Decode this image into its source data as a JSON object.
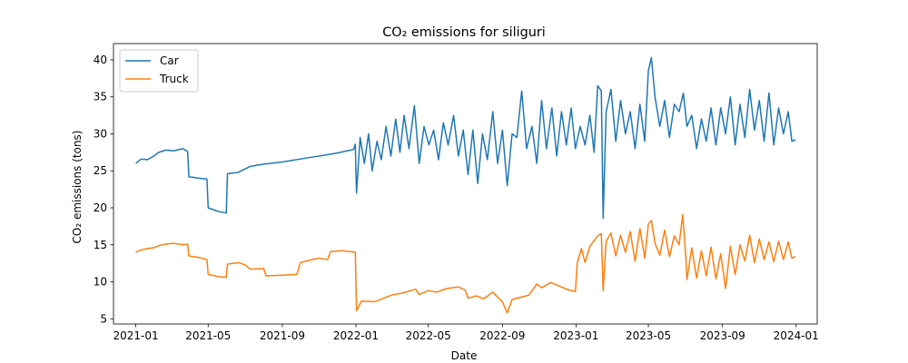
{
  "chart_data": {
    "type": "line",
    "title": "CO₂ emissions for siliguri",
    "xlabel": "Date",
    "ylabel": "CO₂ emissions (tons)",
    "xlim": [
      "2020-11-25",
      "2024-02-05"
    ],
    "ylim": [
      4.3,
      42.2
    ],
    "x_ticks": [
      "2021-01",
      "2021-05",
      "2021-09",
      "2022-01",
      "2022-05",
      "2022-09",
      "2023-01",
      "2023-05",
      "2023-09",
      "2024-01"
    ],
    "y_ticks": [
      5,
      10,
      15,
      20,
      25,
      30,
      35,
      40
    ],
    "grid": false,
    "legend": "top-left",
    "series": [
      {
        "name": "Car",
        "color": "#1f77b4",
        "points": [
          [
            "2021-01-01",
            26.0
          ],
          [
            "2021-01-10",
            26.6
          ],
          [
            "2021-01-20",
            26.5
          ],
          [
            "2021-01-31",
            27.0
          ],
          [
            "2021-02-08",
            27.5
          ],
          [
            "2021-02-20",
            27.8
          ],
          [
            "2021-03-05",
            27.7
          ],
          [
            "2021-03-20",
            28.0
          ],
          [
            "2021-03-28",
            27.6
          ],
          [
            "2021-03-30",
            24.2
          ],
          [
            "2021-04-15",
            24.0
          ],
          [
            "2021-04-29",
            23.9
          ],
          [
            "2021-05-01",
            20.0
          ],
          [
            "2021-05-18",
            19.5
          ],
          [
            "2021-05-31",
            19.3
          ],
          [
            "2021-06-02",
            24.6
          ],
          [
            "2021-06-20",
            24.8
          ],
          [
            "2021-07-10",
            25.6
          ],
          [
            "2021-08-01",
            25.9
          ],
          [
            "2021-09-01",
            26.2
          ],
          [
            "2021-10-01",
            26.6
          ],
          [
            "2021-11-01",
            27.0
          ],
          [
            "2021-12-01",
            27.4
          ],
          [
            "2021-12-28",
            27.9
          ],
          [
            "2021-12-31",
            28.6
          ],
          [
            "2022-01-02",
            22.0
          ],
          [
            "2022-01-08",
            29.5
          ],
          [
            "2022-01-15",
            26.0
          ],
          [
            "2022-01-22",
            30.0
          ],
          [
            "2022-01-28",
            25.0
          ],
          [
            "2022-02-05",
            29.0
          ],
          [
            "2022-02-12",
            26.5
          ],
          [
            "2022-02-20",
            31.0
          ],
          [
            "2022-02-28",
            27.0
          ],
          [
            "2022-03-08",
            32.0
          ],
          [
            "2022-03-15",
            27.5
          ],
          [
            "2022-03-22",
            32.5
          ],
          [
            "2022-03-30",
            28.0
          ],
          [
            "2022-04-08",
            33.8
          ],
          [
            "2022-04-16",
            26.0
          ],
          [
            "2022-04-24",
            31.0
          ],
          [
            "2022-05-02",
            28.5
          ],
          [
            "2022-05-10",
            30.5
          ],
          [
            "2022-05-18",
            26.5
          ],
          [
            "2022-05-26",
            31.5
          ],
          [
            "2022-06-03",
            28.5
          ],
          [
            "2022-06-12",
            32.5
          ],
          [
            "2022-06-20",
            27.0
          ],
          [
            "2022-06-28",
            30.5
          ],
          [
            "2022-07-06",
            24.5
          ],
          [
            "2022-07-14",
            30.5
          ],
          [
            "2022-07-22",
            23.3
          ],
          [
            "2022-07-30",
            30.0
          ],
          [
            "2022-08-07",
            26.5
          ],
          [
            "2022-08-16",
            33.0
          ],
          [
            "2022-08-24",
            26.0
          ],
          [
            "2022-09-01",
            30.5
          ],
          [
            "2022-09-09",
            23.0
          ],
          [
            "2022-09-17",
            30.0
          ],
          [
            "2022-09-25",
            29.5
          ],
          [
            "2022-10-03",
            35.8
          ],
          [
            "2022-10-11",
            28.0
          ],
          [
            "2022-10-20",
            31.0
          ],
          [
            "2022-10-28",
            26.0
          ],
          [
            "2022-11-05",
            34.5
          ],
          [
            "2022-11-13",
            28.0
          ],
          [
            "2022-11-22",
            33.5
          ],
          [
            "2022-11-30",
            27.0
          ],
          [
            "2022-12-08",
            33.0
          ],
          [
            "2022-12-16",
            28.5
          ],
          [
            "2022-12-24",
            33.5
          ],
          [
            "2022-12-31",
            28.0
          ],
          [
            "2023-01-08",
            31.0
          ],
          [
            "2023-01-16",
            28.5
          ],
          [
            "2023-01-24",
            32.5
          ],
          [
            "2023-01-31",
            27.5
          ],
          [
            "2023-02-06",
            36.5
          ],
          [
            "2023-02-12",
            35.8
          ],
          [
            "2023-02-15",
            18.6
          ],
          [
            "2023-02-20",
            33.0
          ],
          [
            "2023-02-28",
            36.0
          ],
          [
            "2023-03-08",
            29.0
          ],
          [
            "2023-03-16",
            34.5
          ],
          [
            "2023-03-24",
            30.0
          ],
          [
            "2023-04-01",
            33.0
          ],
          [
            "2023-04-09",
            28.0
          ],
          [
            "2023-04-17",
            34.0
          ],
          [
            "2023-04-25",
            29.0
          ],
          [
            "2023-05-01",
            38.5
          ],
          [
            "2023-05-06",
            40.3
          ],
          [
            "2023-05-12",
            35.0
          ],
          [
            "2023-05-20",
            31.0
          ],
          [
            "2023-05-28",
            34.5
          ],
          [
            "2023-06-05",
            29.5
          ],
          [
            "2023-06-13",
            34.0
          ],
          [
            "2023-06-21",
            33.0
          ],
          [
            "2023-06-28",
            35.5
          ],
          [
            "2023-07-04",
            31.0
          ],
          [
            "2023-07-12",
            32.5
          ],
          [
            "2023-07-20",
            28.0
          ],
          [
            "2023-07-28",
            32.0
          ],
          [
            "2023-08-05",
            29.0
          ],
          [
            "2023-08-13",
            33.5
          ],
          [
            "2023-08-21",
            28.5
          ],
          [
            "2023-08-29",
            33.5
          ],
          [
            "2023-09-06",
            30.0
          ],
          [
            "2023-09-14",
            35.0
          ],
          [
            "2023-09-22",
            28.5
          ],
          [
            "2023-09-30",
            34.0
          ],
          [
            "2023-10-08",
            29.5
          ],
          [
            "2023-10-16",
            36.0
          ],
          [
            "2023-10-24",
            30.5
          ],
          [
            "2023-11-01",
            34.5
          ],
          [
            "2023-11-09",
            29.0
          ],
          [
            "2023-11-17",
            35.5
          ],
          [
            "2023-11-25",
            28.5
          ],
          [
            "2023-12-03",
            33.5
          ],
          [
            "2023-12-11",
            30.0
          ],
          [
            "2023-12-19",
            33.0
          ],
          [
            "2023-12-25",
            29.0
          ],
          [
            "2023-12-31",
            29.2
          ]
        ]
      },
      {
        "name": "Truck",
        "color": "#ff7f0e",
        "points": [
          [
            "2021-01-01",
            14.0
          ],
          [
            "2021-01-10",
            14.3
          ],
          [
            "2021-01-20",
            14.5
          ],
          [
            "2021-01-31",
            14.6
          ],
          [
            "2021-02-08",
            14.9
          ],
          [
            "2021-02-20",
            15.1
          ],
          [
            "2021-03-05",
            15.2
          ],
          [
            "2021-03-20",
            15.0
          ],
          [
            "2021-03-28",
            15.1
          ],
          [
            "2021-03-30",
            13.5
          ],
          [
            "2021-04-15",
            13.3
          ],
          [
            "2021-04-29",
            13.0
          ],
          [
            "2021-05-01",
            11.0
          ],
          [
            "2021-05-18",
            10.7
          ],
          [
            "2021-05-31",
            10.6
          ],
          [
            "2021-06-02",
            12.4
          ],
          [
            "2021-06-20",
            12.6
          ],
          [
            "2021-07-01",
            12.3
          ],
          [
            "2021-07-10",
            11.7
          ],
          [
            "2021-08-01",
            11.8
          ],
          [
            "2021-08-05",
            10.8
          ],
          [
            "2021-09-01",
            10.9
          ],
          [
            "2021-09-25",
            11.0
          ],
          [
            "2021-10-01",
            12.6
          ],
          [
            "2021-10-15",
            12.9
          ],
          [
            "2021-11-01",
            13.2
          ],
          [
            "2021-11-15",
            13.0
          ],
          [
            "2021-11-20",
            14.1
          ],
          [
            "2021-12-10",
            14.2
          ],
          [
            "2021-12-31",
            14.0
          ],
          [
            "2022-01-02",
            6.1
          ],
          [
            "2022-01-10",
            7.4
          ],
          [
            "2022-02-01",
            7.3
          ],
          [
            "2022-03-01",
            8.2
          ],
          [
            "2022-03-20",
            8.5
          ],
          [
            "2022-04-10",
            9.0
          ],
          [
            "2022-04-16",
            8.3
          ],
          [
            "2022-05-01",
            8.8
          ],
          [
            "2022-05-15",
            8.6
          ],
          [
            "2022-06-01",
            9.1
          ],
          [
            "2022-06-20",
            9.3
          ],
          [
            "2022-07-01",
            8.9
          ],
          [
            "2022-07-06",
            7.8
          ],
          [
            "2022-07-20",
            8.1
          ],
          [
            "2022-08-01",
            7.7
          ],
          [
            "2022-08-16",
            8.6
          ],
          [
            "2022-09-01",
            7.3
          ],
          [
            "2022-09-09",
            5.8
          ],
          [
            "2022-09-17",
            7.6
          ],
          [
            "2022-10-01",
            7.9
          ],
          [
            "2022-10-15",
            8.2
          ],
          [
            "2022-10-28",
            9.7
          ],
          [
            "2022-11-05",
            9.2
          ],
          [
            "2022-11-20",
            9.9
          ],
          [
            "2022-12-05",
            9.4
          ],
          [
            "2022-12-20",
            8.9
          ],
          [
            "2022-12-31",
            8.7
          ],
          [
            "2023-01-03",
            12.5
          ],
          [
            "2023-01-10",
            14.5
          ],
          [
            "2023-01-16",
            12.6
          ],
          [
            "2023-01-24",
            14.8
          ],
          [
            "2023-02-06",
            16.2
          ],
          [
            "2023-02-12",
            16.5
          ],
          [
            "2023-02-15",
            8.8
          ],
          [
            "2023-02-20",
            15.5
          ],
          [
            "2023-02-28",
            16.6
          ],
          [
            "2023-03-08",
            13.5
          ],
          [
            "2023-03-16",
            16.3
          ],
          [
            "2023-03-24",
            14.0
          ],
          [
            "2023-04-01",
            16.8
          ],
          [
            "2023-04-09",
            12.8
          ],
          [
            "2023-04-17",
            17.2
          ],
          [
            "2023-04-25",
            13.2
          ],
          [
            "2023-05-01",
            17.8
          ],
          [
            "2023-05-06",
            18.3
          ],
          [
            "2023-05-12",
            15.2
          ],
          [
            "2023-05-20",
            13.6
          ],
          [
            "2023-05-28",
            17.0
          ],
          [
            "2023-06-05",
            13.4
          ],
          [
            "2023-06-13",
            16.2
          ],
          [
            "2023-06-21",
            15.0
          ],
          [
            "2023-06-27",
            19.1
          ],
          [
            "2023-07-02",
            13.5
          ],
          [
            "2023-07-04",
            10.3
          ],
          [
            "2023-07-12",
            14.6
          ],
          [
            "2023-07-20",
            10.5
          ],
          [
            "2023-07-28",
            14.2
          ],
          [
            "2023-08-05",
            10.8
          ],
          [
            "2023-08-13",
            14.7
          ],
          [
            "2023-08-21",
            10.4
          ],
          [
            "2023-08-29",
            13.8
          ],
          [
            "2023-09-06",
            9.1
          ],
          [
            "2023-09-14",
            14.8
          ],
          [
            "2023-09-22",
            11.0
          ],
          [
            "2023-09-30",
            15.0
          ],
          [
            "2023-10-08",
            12.8
          ],
          [
            "2023-10-16",
            16.3
          ],
          [
            "2023-10-24",
            12.6
          ],
          [
            "2023-11-01",
            15.8
          ],
          [
            "2023-11-09",
            13.0
          ],
          [
            "2023-11-17",
            15.4
          ],
          [
            "2023-11-25",
            12.7
          ],
          [
            "2023-12-03",
            15.5
          ],
          [
            "2023-12-11",
            13.0
          ],
          [
            "2023-12-19",
            15.4
          ],
          [
            "2023-12-25",
            13.2
          ],
          [
            "2023-12-31",
            13.4
          ]
        ]
      }
    ]
  }
}
